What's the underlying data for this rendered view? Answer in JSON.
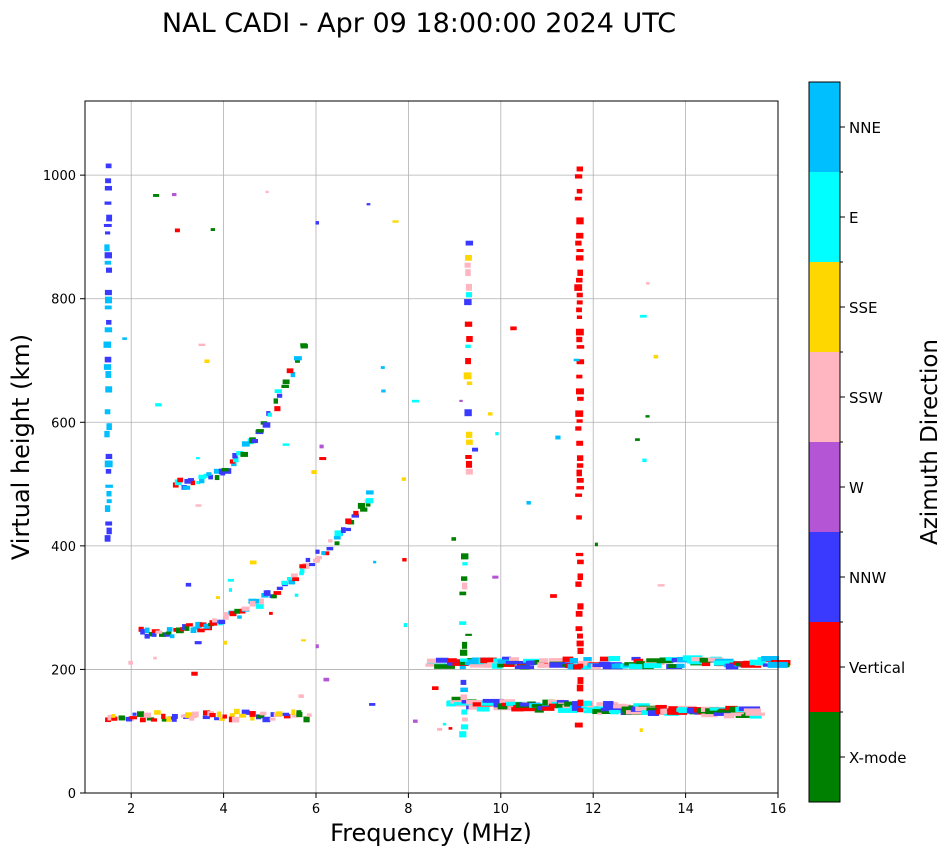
{
  "chart_data": {
    "type": "scatter",
    "title": "NAL CADI - Apr 09 18:00:00 2024 UTC",
    "xlabel": "Frequency (MHz)",
    "ylabel": "Virtual height (km)",
    "xlim": [
      1.0,
      16.0
    ],
    "ylim": [
      0,
      1120
    ],
    "x_ticks": [
      2,
      4,
      6,
      8,
      10,
      12,
      14,
      16
    ],
    "y_ticks": [
      0,
      200,
      400,
      600,
      800,
      1000
    ],
    "grid": true,
    "colorbar": {
      "label": "Azimuth Direction",
      "categories": [
        {
          "name": "X-mode",
          "color": "#008000"
        },
        {
          "name": "Vertical",
          "color": "#ff0000"
        },
        {
          "name": "NNW",
          "color": "#3a3aff"
        },
        {
          "name": "W",
          "color": "#b455d6"
        },
        {
          "name": "SSW",
          "color": "#ffb6c1"
        },
        {
          "name": "SSE",
          "color": "#ffd700"
        },
        {
          "name": "E",
          "color": "#00ffff"
        },
        {
          "name": "NNE",
          "color": "#00bfff"
        }
      ]
    },
    "traces": [
      {
        "name": "O-trace lower F",
        "f_start": 2.2,
        "f_end": 7.2,
        "h_start": 258,
        "h_end": 480,
        "n": 46,
        "colors": [
          "E",
          "NNE",
          "X-mode",
          "Vertical",
          "NNW",
          "SSW"
        ]
      },
      {
        "name": "Second hop",
        "f_start": 3.0,
        "f_end": 5.7,
        "h_start": 500,
        "h_end": 720,
        "n": 24,
        "colors": [
          "NNE",
          "Vertical",
          "E",
          "NNW",
          "X-mode"
        ]
      },
      {
        "name": "E region",
        "f_start": 1.5,
        "f_end": 5.8,
        "h_start": 125,
        "h_end": 125,
        "n": 30,
        "colors": [
          "Vertical",
          "SSW",
          "X-mode",
          "SSE",
          "NNW"
        ]
      },
      {
        "name": "Sporadic spread 200 km",
        "f_start": 8.6,
        "f_end": 16.0,
        "h_start": 210,
        "h_end": 212,
        "n": 40,
        "colors": [
          "Vertical",
          "NNE",
          "E",
          "SSW",
          "X-mode",
          "NNW"
        ]
      },
      {
        "name": "Low spread 140 km",
        "f_start": 9.0,
        "f_end": 15.5,
        "h_start": 145,
        "h_end": 130,
        "n": 40,
        "colors": [
          "Vertical",
          "X-mode",
          "NNW",
          "E",
          "SSW"
        ]
      }
    ],
    "columns": [
      {
        "name": "9.2 MHz column",
        "f": 9.2,
        "h_min": 95,
        "h_max": 395,
        "colors": [
          "E",
          "NNE",
          "SSW",
          "X-mode",
          "NNW"
        ]
      },
      {
        "name": "9.3 MHz column",
        "f": 9.3,
        "h_min": 520,
        "h_max": 890,
        "colors": [
          "SSE",
          "SSW",
          "NNW",
          "E",
          "Vertical"
        ]
      },
      {
        "name": "11.7 MHz column",
        "f": 11.7,
        "h_min": 110,
        "h_max": 1010,
        "colors": [
          "Vertical"
        ]
      },
      {
        "name": "1.5 MHz column",
        "f": 1.5,
        "h_min": 400,
        "h_max": 1015,
        "colors": [
          "NNW",
          "NNE"
        ]
      }
    ]
  }
}
